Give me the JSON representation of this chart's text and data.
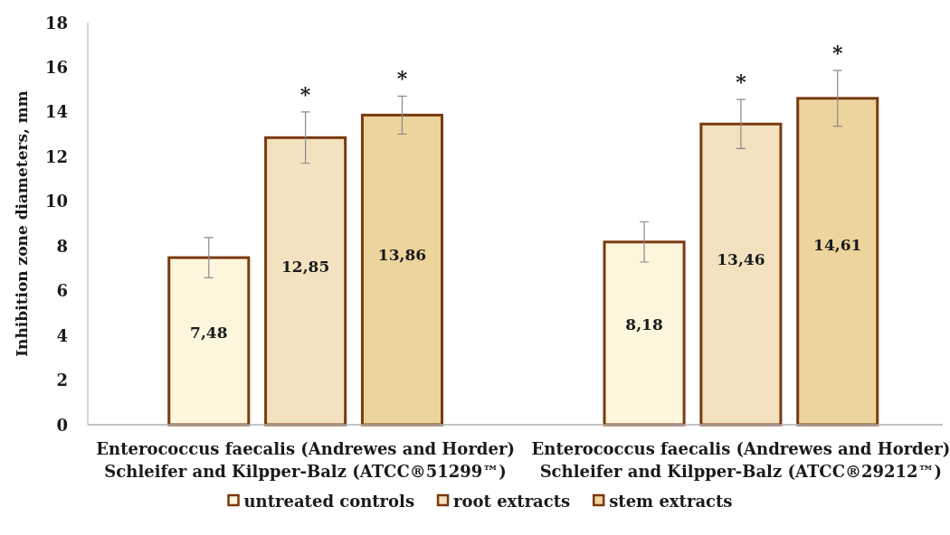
{
  "chart_data": {
    "type": "bar",
    "ylabel": "Inhibition zone diameters, mm",
    "categories": [
      "Enterococcus faecalis (Andrewes and Horder) Schleifer and Kilpper-Balz (ATCC®51299™)",
      "Enterococcus faecalis (Andrewes and Horder) Schleifer and Kilpper-Balz (ATCC®29212™)"
    ],
    "series": [
      {
        "name": "untreated controls",
        "color": "#fdf6dc",
        "values": [
          7.48,
          8.18
        ],
        "errors": [
          0.9,
          0.9
        ],
        "value_labels": [
          "7,48",
          "8,18"
        ]
      },
      {
        "name": "root extracts",
        "color": "#f3e2bf",
        "values": [
          12.85,
          13.46
        ],
        "errors": [
          1.15,
          1.1
        ],
        "value_labels": [
          "12,85",
          "13,46"
        ]
      },
      {
        "name": "stem extracts",
        "color": "#ecd49c",
        "values": [
          13.86,
          14.61
        ],
        "errors": [
          0.85,
          1.25
        ],
        "value_labels": [
          "13,86",
          "14,61"
        ]
      }
    ],
    "ylim": [
      0,
      18
    ],
    "yticks": [
      0,
      2,
      4,
      6,
      8,
      10,
      12,
      14,
      16,
      18
    ],
    "legend": "bottom",
    "annotations": [
      "*",
      "*",
      "*",
      "*"
    ]
  }
}
